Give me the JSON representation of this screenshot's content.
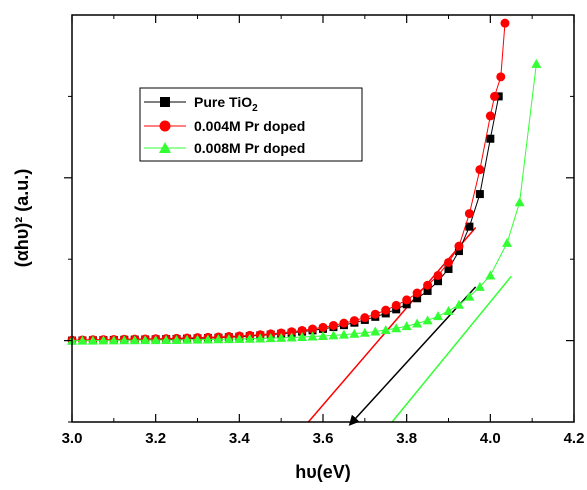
{
  "chart_data": {
    "type": "scatter",
    "title": "",
    "xlabel": "hυ(eV)",
    "ylabel": "(αhυ)² (a.u.)",
    "xlim": [
      3.0,
      4.2
    ],
    "ylim": [
      -0.5,
      2.0
    ],
    "x_ticks": [
      "3.0",
      "3.2",
      "3.4",
      "3.6",
      "3.8",
      "4.0",
      "4.2"
    ],
    "y_ticks_labeled": false,
    "grid": false,
    "legend_position": "upper-left",
    "series": [
      {
        "name": "Pure TiO2",
        "name_main": "Pure TiO",
        "name_sub": "2",
        "color": "#000000",
        "marker": "square",
        "x": [
          3.0,
          3.025,
          3.05,
          3.075,
          3.1,
          3.125,
          3.15,
          3.175,
          3.2,
          3.225,
          3.25,
          3.275,
          3.3,
          3.325,
          3.35,
          3.375,
          3.4,
          3.425,
          3.45,
          3.475,
          3.5,
          3.525,
          3.55,
          3.575,
          3.6,
          3.625,
          3.65,
          3.675,
          3.7,
          3.725,
          3.75,
          3.775,
          3.8,
          3.825,
          3.85,
          3.875,
          3.9,
          3.925,
          3.95,
          3.975,
          4.0,
          4.02
        ],
        "y": [
          0.0,
          0.001,
          0.002,
          0.003,
          0.004,
          0.005,
          0.006,
          0.007,
          0.008,
          0.009,
          0.01,
          0.012,
          0.014,
          0.016,
          0.018,
          0.021,
          0.024,
          0.028,
          0.032,
          0.037,
          0.042,
          0.048,
          0.055,
          0.063,
          0.072,
          0.083,
          0.095,
          0.11,
          0.127,
          0.146,
          0.167,
          0.192,
          0.223,
          0.26,
          0.305,
          0.365,
          0.44,
          0.55,
          0.7,
          0.9,
          1.24,
          1.5
        ]
      },
      {
        "name": "0.004M Pr doped",
        "color": "#ff0000",
        "marker": "circle",
        "x": [
          3.0,
          3.025,
          3.05,
          3.075,
          3.1,
          3.125,
          3.15,
          3.175,
          3.2,
          3.225,
          3.25,
          3.275,
          3.3,
          3.325,
          3.35,
          3.375,
          3.4,
          3.425,
          3.45,
          3.475,
          3.5,
          3.525,
          3.55,
          3.575,
          3.6,
          3.625,
          3.65,
          3.675,
          3.7,
          3.725,
          3.75,
          3.775,
          3.8,
          3.825,
          3.85,
          3.875,
          3.9,
          3.925,
          3.95,
          3.975,
          4.0,
          4.01,
          4.025,
          4.035
        ],
        "y": [
          0.003,
          0.004,
          0.005,
          0.006,
          0.007,
          0.008,
          0.009,
          0.01,
          0.011,
          0.012,
          0.014,
          0.016,
          0.018,
          0.02,
          0.022,
          0.025,
          0.028,
          0.032,
          0.036,
          0.041,
          0.047,
          0.054,
          0.062,
          0.071,
          0.081,
          0.093,
          0.107,
          0.123,
          0.141,
          0.162,
          0.187,
          0.216,
          0.25,
          0.292,
          0.34,
          0.4,
          0.48,
          0.58,
          0.78,
          1.05,
          1.38,
          1.5,
          1.62,
          1.95
        ]
      },
      {
        "name": "0.008M Pr doped",
        "color": "#33ff33",
        "marker": "triangle",
        "x": [
          3.0,
          3.025,
          3.05,
          3.075,
          3.1,
          3.125,
          3.15,
          3.175,
          3.2,
          3.225,
          3.25,
          3.275,
          3.3,
          3.325,
          3.35,
          3.375,
          3.4,
          3.425,
          3.45,
          3.475,
          3.5,
          3.525,
          3.55,
          3.575,
          3.6,
          3.625,
          3.65,
          3.675,
          3.7,
          3.725,
          3.75,
          3.775,
          3.8,
          3.825,
          3.85,
          3.875,
          3.9,
          3.925,
          3.95,
          3.975,
          4.0,
          4.04,
          4.07,
          4.11
        ],
        "y": [
          0.0,
          0.0,
          0.0,
          0.001,
          0.001,
          0.002,
          0.002,
          0.003,
          0.003,
          0.004,
          0.004,
          0.005,
          0.006,
          0.007,
          0.008,
          0.009,
          0.01,
          0.011,
          0.013,
          0.015,
          0.017,
          0.019,
          0.022,
          0.025,
          0.028,
          0.032,
          0.037,
          0.042,
          0.048,
          0.056,
          0.065,
          0.076,
          0.089,
          0.105,
          0.124,
          0.15,
          0.182,
          0.22,
          0.27,
          0.33,
          0.4,
          0.6,
          0.85,
          1.7
        ]
      }
    ],
    "tangent_lines": [
      {
        "series": "0.004M Pr doped",
        "color": "#ff0000",
        "x": [
          3.565,
          3.965
        ],
        "y": [
          -0.5,
          0.695
        ]
      },
      {
        "series": "Pure TiO2",
        "color": "#000000",
        "x": [
          3.67,
          3.965
        ],
        "y": [
          -0.5,
          0.33
        ],
        "arrow": "start"
      },
      {
        "series": "0.008M Pr doped",
        "color": "#33ff33",
        "x": [
          3.765,
          4.05
        ],
        "y": [
          -0.5,
          0.395
        ]
      }
    ]
  }
}
